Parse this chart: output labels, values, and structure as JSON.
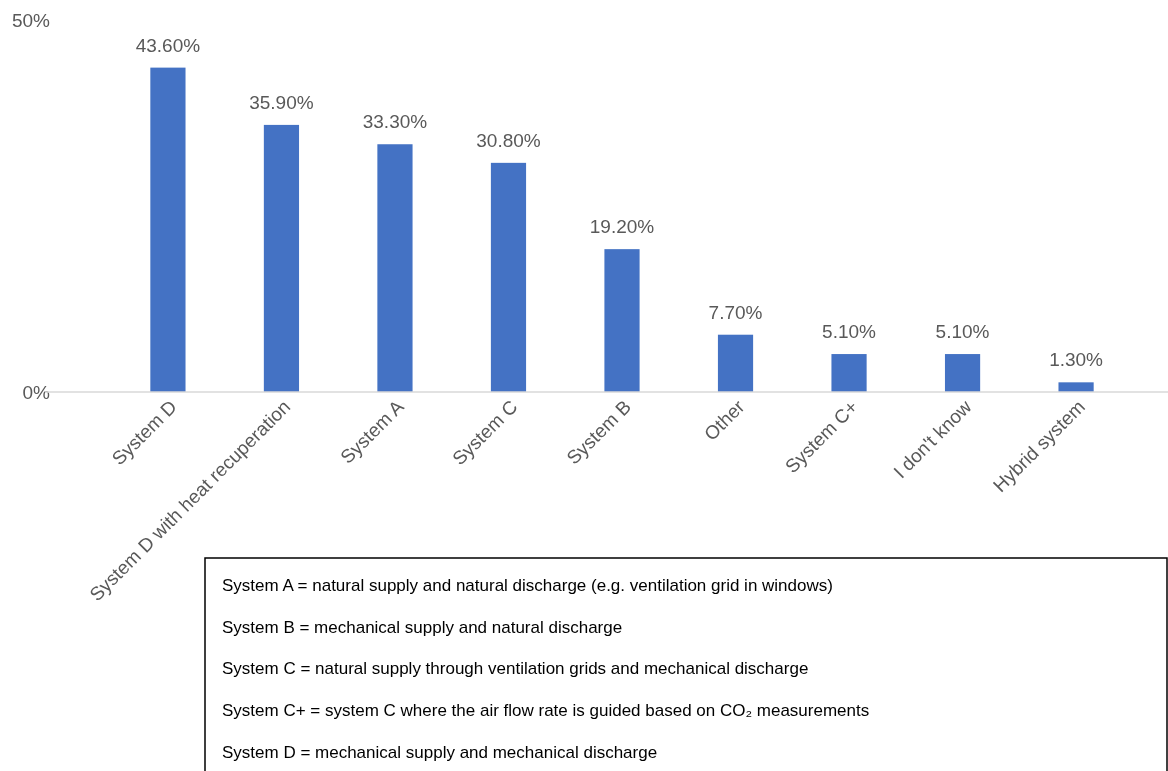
{
  "chart_data": {
    "type": "bar",
    "categories": [
      "System D",
      "System D with heat recuperation",
      "System A",
      "System C",
      "System B",
      "Other",
      "System C+",
      "I don't know",
      "Hybrid system"
    ],
    "values": [
      43.6,
      35.9,
      33.3,
      30.8,
      19.2,
      7.7,
      5.1,
      5.1,
      1.3
    ],
    "value_labels": [
      "43.60%",
      "35.90%",
      "33.30%",
      "30.80%",
      "19.20%",
      "7.70%",
      "5.10%",
      "5.10%",
      "1.30%"
    ],
    "color": "#4472c4",
    "ylim": [
      0,
      50
    ],
    "yticks": [
      {
        "value": 0,
        "label": "0%"
      },
      {
        "value": 50,
        "label": "50%"
      }
    ],
    "grid": false,
    "annotations": [
      "System A = natural supply and natural discharge (e.g. ventilation grid in windows)",
      "System B = mechanical supply and natural discharge",
      "System C = natural supply through ventilation grids and mechanical discharge",
      "System C+ = system C where the air flow rate is guided based on CO₂ measurements",
      "System D = mechanical supply and mechanical discharge"
    ]
  }
}
